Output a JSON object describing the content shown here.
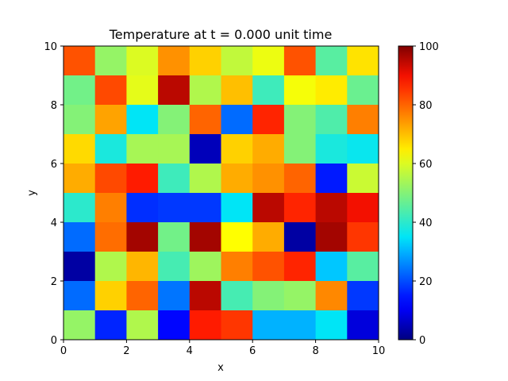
{
  "chart_data": {
    "type": "heatmap",
    "title": "Temperature at t = 0.000 unit time",
    "xlabel": "x",
    "ylabel": "y",
    "xlim": [
      0,
      10
    ],
    "ylim": [
      0,
      10
    ],
    "x_ticks": [
      0,
      2,
      4,
      6,
      8,
      10
    ],
    "y_ticks": [
      0,
      2,
      4,
      6,
      8,
      10
    ],
    "colormap": "jet",
    "clim": [
      0,
      100
    ],
    "colorbar_ticks": [
      0,
      20,
      40,
      60,
      80,
      100
    ],
    "grid": false,
    "rows_top_to_bottom": [
      [
        82,
        52,
        60,
        75,
        68,
        57,
        62,
        82,
        45,
        66
      ],
      [
        48,
        83,
        61,
        95,
        55,
        70,
        42,
        63,
        65,
        47
      ],
      [
        50,
        73,
        35,
        50,
        80,
        23,
        87,
        50,
        44,
        77
      ],
      [
        67,
        38,
        54,
        54,
        5,
        68,
        72,
        50,
        38,
        36
      ],
      [
        72,
        83,
        88,
        42,
        55,
        72,
        75,
        80,
        15,
        58
      ],
      [
        40,
        77,
        17,
        18,
        18,
        35,
        95,
        87,
        95,
        90
      ],
      [
        23,
        79,
        97,
        48,
        97,
        64,
        72,
        3,
        97,
        85
      ],
      [
        3,
        55,
        71,
        43,
        53,
        77,
        82,
        87,
        32,
        45
      ],
      [
        23,
        68,
        80,
        24,
        95,
        43,
        50,
        52,
        76,
        18
      ],
      [
        52,
        16,
        55,
        13,
        88,
        85,
        30,
        30,
        35,
        8
      ]
    ]
  }
}
